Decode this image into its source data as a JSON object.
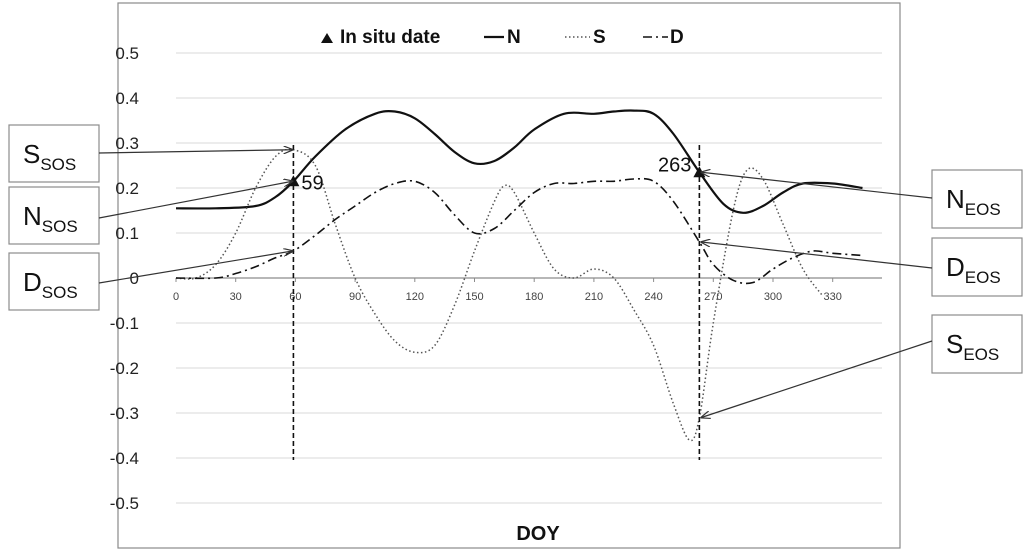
{
  "chart_data": {
    "type": "line",
    "xlabel": "DOY",
    "ylabel": "",
    "xlim": [
      0,
      345
    ],
    "ylim": [
      -0.5,
      0.5
    ],
    "x_ticks": [
      "0",
      "30",
      "60",
      "90",
      "120",
      "150",
      "180",
      "210",
      "240",
      "270",
      "300",
      "330"
    ],
    "y_ticks": [
      "0.5",
      "0.4",
      "0.3",
      "0.2",
      "0.1",
      "0",
      "-0.1",
      "-0.2",
      "-0.3",
      "-0.4",
      "-0.5"
    ],
    "grid": true,
    "legend_position": "top",
    "legend": {
      "marker_label": "In situ date",
      "entries": [
        "N",
        "S",
        "D"
      ]
    },
    "series": [
      {
        "name": "N",
        "x": [
          0,
          20,
          40,
          50,
          59,
          70,
          85,
          100,
          110,
          120,
          130,
          140,
          150,
          160,
          170,
          180,
          195,
          210,
          220,
          230,
          240,
          250,
          263,
          275,
          285,
          295,
          305,
          315,
          330,
          345
        ],
        "y": [
          0.155,
          0.155,
          0.16,
          0.18,
          0.215,
          0.27,
          0.33,
          0.365,
          0.37,
          0.355,
          0.32,
          0.28,
          0.255,
          0.26,
          0.29,
          0.33,
          0.365,
          0.365,
          0.37,
          0.372,
          0.365,
          0.32,
          0.235,
          0.165,
          0.145,
          0.16,
          0.19,
          0.21,
          0.21,
          0.2
        ]
      },
      {
        "name": "S",
        "x": [
          0,
          10,
          20,
          30,
          40,
          50,
          59,
          70,
          80,
          90,
          100,
          110,
          120,
          130,
          140,
          150,
          160,
          165,
          170,
          180,
          190,
          200,
          210,
          220,
          230,
          240,
          250,
          258,
          263,
          270,
          280,
          287,
          295,
          305,
          315,
          325
        ],
        "y": [
          0.0,
          0.0,
          0.03,
          0.1,
          0.2,
          0.27,
          0.285,
          0.25,
          0.12,
          0.0,
          -0.08,
          -0.14,
          -0.165,
          -0.15,
          -0.06,
          0.06,
          0.17,
          0.205,
          0.19,
          0.1,
          0.02,
          0.0,
          0.02,
          0.0,
          -0.07,
          -0.15,
          -0.28,
          -0.36,
          -0.31,
          -0.1,
          0.15,
          0.24,
          0.22,
          0.12,
          0.02,
          -0.04
        ]
      },
      {
        "name": "D",
        "x": [
          0,
          20,
          30,
          40,
          50,
          59,
          70,
          80,
          90,
          100,
          110,
          120,
          130,
          140,
          150,
          160,
          170,
          180,
          190,
          200,
          210,
          220,
          230,
          240,
          250,
          263,
          270,
          280,
          290,
          300,
          310,
          320,
          330,
          345
        ],
        "y": [
          0.0,
          0.0,
          0.01,
          0.025,
          0.045,
          0.06,
          0.095,
          0.13,
          0.16,
          0.19,
          0.21,
          0.215,
          0.19,
          0.14,
          0.1,
          0.11,
          0.15,
          0.19,
          0.21,
          0.21,
          0.215,
          0.215,
          0.22,
          0.215,
          0.17,
          0.08,
          0.03,
          -0.005,
          -0.01,
          0.02,
          0.045,
          0.06,
          0.055,
          0.05
        ]
      }
    ],
    "in_situ_dates": [
      {
        "x": 59,
        "y": 0.215,
        "label": "59"
      },
      {
        "x": 263,
        "y": 0.235,
        "label": "263"
      }
    ],
    "callouts": [
      {
        "id": "S_SOS",
        "main": "S",
        "sub": "SOS",
        "x": 59,
        "y": 0.285
      },
      {
        "id": "N_SOS",
        "main": "N",
        "sub": "SOS",
        "x": 59,
        "y": 0.215
      },
      {
        "id": "D_SOS",
        "main": "D",
        "sub": "SOS",
        "x": 59,
        "y": 0.06
      },
      {
        "id": "N_EOS",
        "main": "N",
        "sub": "EOS",
        "x": 263,
        "y": 0.235
      },
      {
        "id": "D_EOS",
        "main": "D",
        "sub": "EOS",
        "x": 263,
        "y": 0.08
      },
      {
        "id": "S_EOS",
        "main": "S",
        "sub": "EOS",
        "x": 263,
        "y": -0.31
      }
    ]
  }
}
